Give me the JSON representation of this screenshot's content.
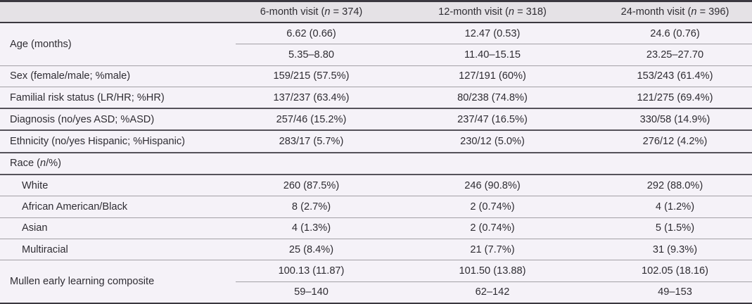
{
  "colors": {
    "header_bg": "#e5e2e6",
    "body_bg": "#f5f2f8",
    "rule_dark": "#3b3840",
    "rule_mid": "#55525a",
    "rule_light": "#a3a1a6",
    "text": "#2f2d33"
  },
  "table": {
    "header": [
      {
        "prefix": "6-month visit (",
        "n": "n",
        "suffix": " = 374)"
      },
      {
        "prefix": "12-month visit (",
        "n": "n",
        "suffix": " = 318)"
      },
      {
        "prefix": "24-month visit (",
        "n": "n",
        "suffix": " = 396)"
      }
    ],
    "rows": {
      "age": {
        "label": "Age (months)",
        "mean": [
          "6.62 (0.66)",
          "12.47 (0.53)",
          "24.6 (0.76)"
        ],
        "range": [
          "5.35–8.80",
          "11.40–15.15",
          "23.25–27.70"
        ]
      },
      "sex": {
        "label": "Sex (female/male; %male)",
        "values": [
          "159/215 (57.5%)",
          "127/191 (60%)",
          "153/243 (61.4%)"
        ]
      },
      "familial_risk": {
        "label": "Familial risk status (LR/HR; %HR)",
        "values": [
          "137/237 (63.4%)",
          "80/238 (74.8%)",
          "121/275 (69.4%)"
        ]
      },
      "diagnosis": {
        "label": "Diagnosis (no/yes ASD; %ASD)",
        "values": [
          "257/46 (15.2%)",
          "237/47 (16.5%)",
          "330/58 (14.9%)"
        ]
      },
      "ethnicity": {
        "label": "Ethnicity (no/yes Hispanic; %Hispanic)",
        "values": [
          "283/17 (5.7%)",
          "230/12 (5.0%)",
          "276/12 (4.2%)"
        ]
      },
      "race": {
        "label_prefix": "Race (",
        "label_n": "n",
        "label_suffix": "/%)",
        "values": [
          "",
          "",
          ""
        ]
      },
      "race_white": {
        "label": "White",
        "values": [
          "260 (87.5%)",
          "246 (90.8%)",
          "292 (88.0%)"
        ]
      },
      "race_african_american_black": {
        "label": "African American/Black",
        "values": [
          "8 (2.7%)",
          "2 (0.74%)",
          "4 (1.2%)"
        ]
      },
      "race_asian": {
        "label": "Asian",
        "values": [
          "4 (1.3%)",
          "2 (0.74%)",
          "5 (1.5%)"
        ]
      },
      "race_multiracial": {
        "label": "Multiracial",
        "values": [
          "25 (8.4%)",
          "21 (7.7%)",
          "31 (9.3%)"
        ]
      },
      "mullen": {
        "label": "Mullen early learning composite",
        "mean": [
          "100.13 (11.87)",
          "101.50 (13.88)",
          "102.05 (18.16)"
        ],
        "range": [
          "59–140",
          "62–142",
          "49–153"
        ]
      }
    }
  }
}
